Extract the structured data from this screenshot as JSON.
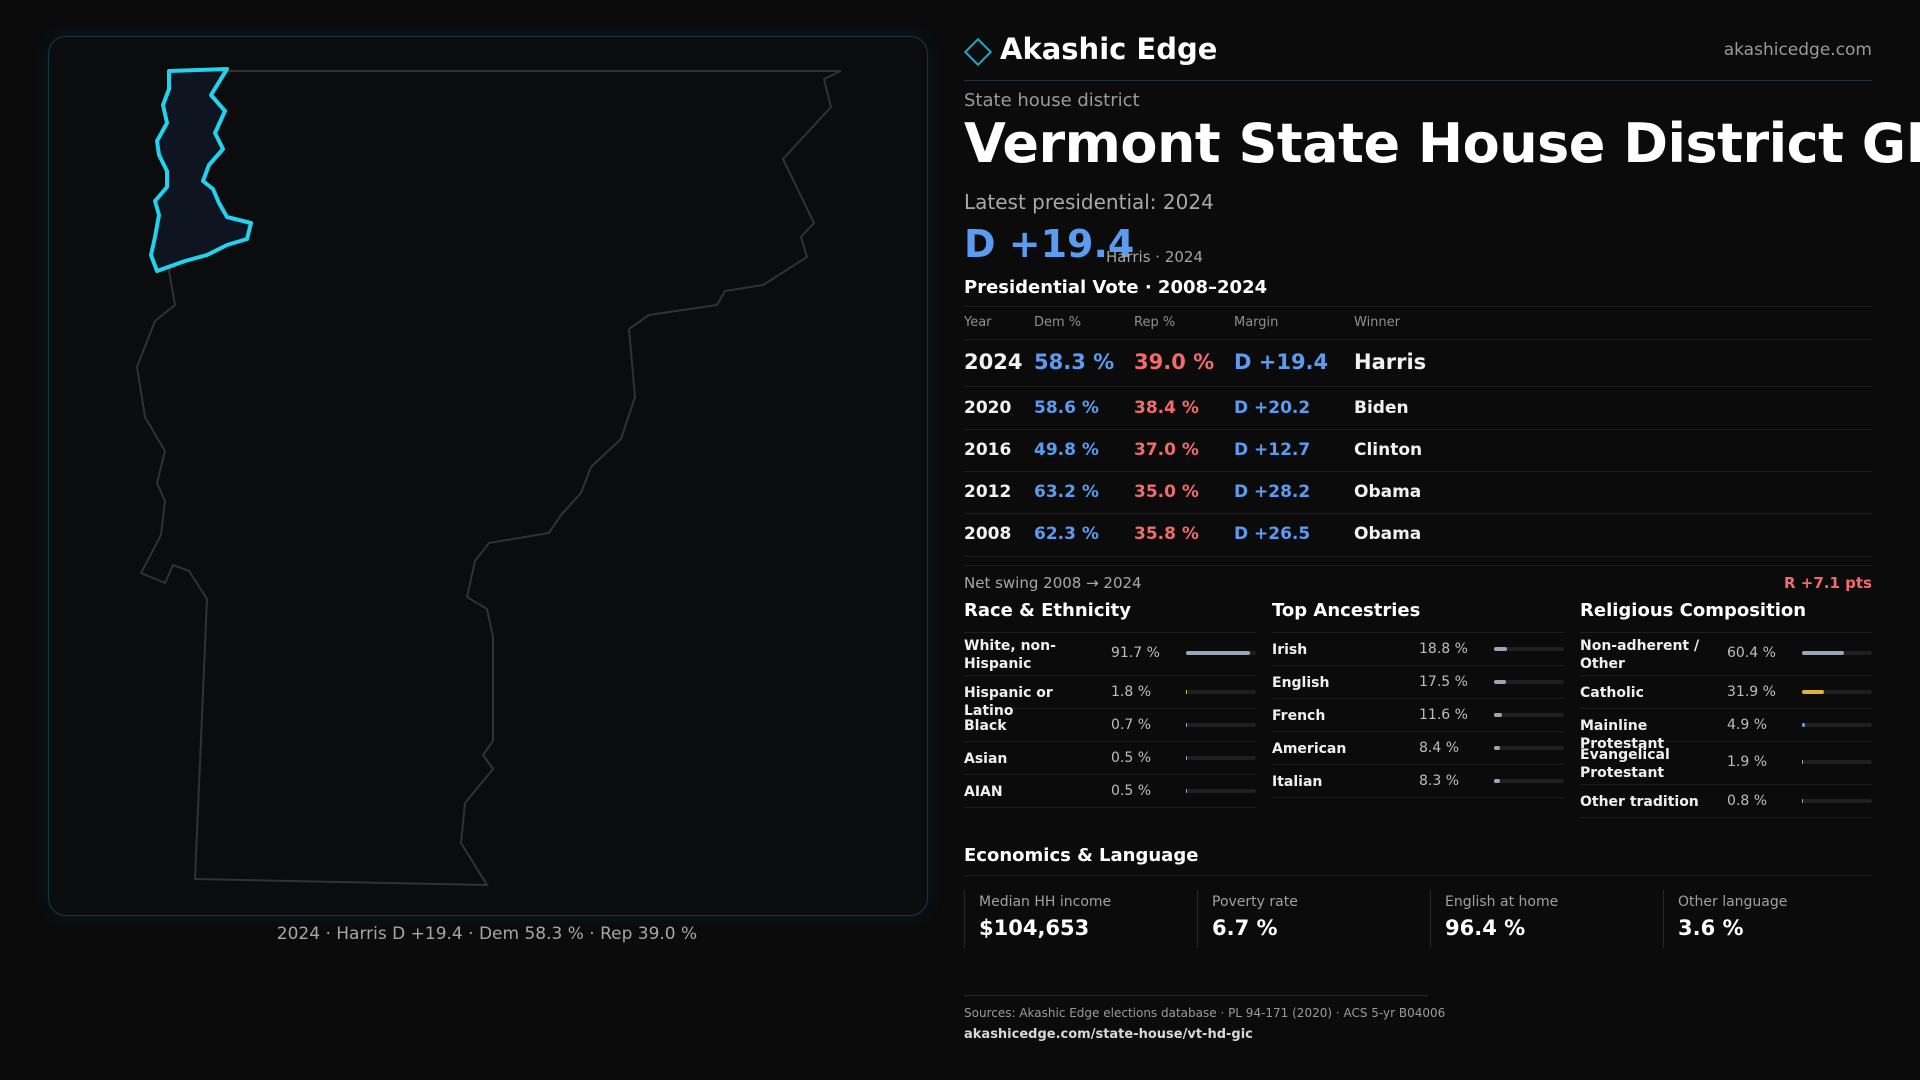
{
  "map": {
    "caption": "2024 · Harris D +19.4 · Dem 58.3 % · Rep 39.0 %"
  },
  "brand": {
    "name": "Akashic Edge",
    "url": "akashicedge.com"
  },
  "header": {
    "kicker": "State house district",
    "title": "Vermont  State House District GIC",
    "latest_label": "Latest presidential: 2024",
    "margin": "D +19.4",
    "margin_sub": "Harris · 2024"
  },
  "presidential": {
    "title": "Presidential Vote · 2008–2024",
    "columns": [
      "Year",
      "Dem %",
      "Rep %",
      "Margin",
      "Winner"
    ],
    "rows": [
      {
        "year": "2024",
        "dem": "58.3 %",
        "rep": "39.0 %",
        "margin": "D +19.4",
        "winner": "Harris"
      },
      {
        "year": "2020",
        "dem": "58.6 %",
        "rep": "38.4 %",
        "margin": "D +20.2",
        "winner": "Biden"
      },
      {
        "year": "2016",
        "dem": "49.8 %",
        "rep": "37.0 %",
        "margin": "D +12.7",
        "winner": "Clinton"
      },
      {
        "year": "2012",
        "dem": "63.2 %",
        "rep": "35.0 %",
        "margin": "D +28.2",
        "winner": "Obama"
      },
      {
        "year": "2008",
        "dem": "62.3 %",
        "rep": "35.8 %",
        "margin": "D +26.5",
        "winner": "Obama"
      }
    ],
    "swing_label": "Net swing 2008 → 2024",
    "swing_value": "R +7.1 pts"
  },
  "race": {
    "title": "Race & Ethnicity",
    "items": [
      {
        "name": "White, non-Hispanic",
        "value": "91.7 %",
        "share": 0.917,
        "color": "#9aa7b8"
      },
      {
        "name": "Hispanic or Latino",
        "value": "1.8 %",
        "share": 0.018,
        "color": "#e0b23a"
      },
      {
        "name": "Black",
        "value": "0.7 %",
        "share": 0.007,
        "color": "#9aa7b8"
      },
      {
        "name": "Asian",
        "value": "0.5 %",
        "share": 0.005,
        "color": "#9aa7b8"
      },
      {
        "name": "AIAN",
        "value": "0.5 %",
        "share": 0.005,
        "color": "#9aa7b8"
      }
    ]
  },
  "ancestry": {
    "title": "Top Ancestries",
    "items": [
      {
        "name": "Irish",
        "value": "18.8 %",
        "share": 0.188,
        "color": "#9aa7b8"
      },
      {
        "name": "English",
        "value": "17.5 %",
        "share": 0.175,
        "color": "#9aa7b8"
      },
      {
        "name": "French",
        "value": "11.6 %",
        "share": 0.116,
        "color": "#9aa7b8"
      },
      {
        "name": "American",
        "value": "8.4 %",
        "share": 0.084,
        "color": "#9aa7b8"
      },
      {
        "name": "Italian",
        "value": "8.3 %",
        "share": 0.083,
        "color": "#9aa7b8"
      }
    ]
  },
  "religion": {
    "title": "Religious Composition",
    "items": [
      {
        "name": "Non-adherent / Other",
        "value": "60.4 %",
        "share": 0.604,
        "color": "#9aa7b8"
      },
      {
        "name": "Catholic",
        "value": "31.9 %",
        "share": 0.319,
        "color": "#e0b23a"
      },
      {
        "name": "Mainline Protestant",
        "value": "4.9 %",
        "share": 0.049,
        "color": "#5b9cf0"
      },
      {
        "name": "Evangelical Protestant",
        "value": "1.9 %",
        "share": 0.019,
        "color": "#9aa7b8"
      },
      {
        "name": "Other tradition",
        "value": "0.8 %",
        "share": 0.008,
        "color": "#9aa7b8"
      }
    ]
  },
  "economics": {
    "title": "Economics & Language",
    "items": [
      {
        "label": "Median HH income",
        "value": "$104,653"
      },
      {
        "label": "Poverty rate",
        "value": "6.7 %"
      },
      {
        "label": "English at home",
        "value": "96.4 %"
      },
      {
        "label": "Other language",
        "value": "3.6 %"
      }
    ]
  },
  "sources": {
    "line1": "Sources: Akashic Edge elections database · PL 94-171 (2020) · ACS 5-yr B04006",
    "line2": "akashicedge.com/state-house/vt-hd-gic"
  }
}
